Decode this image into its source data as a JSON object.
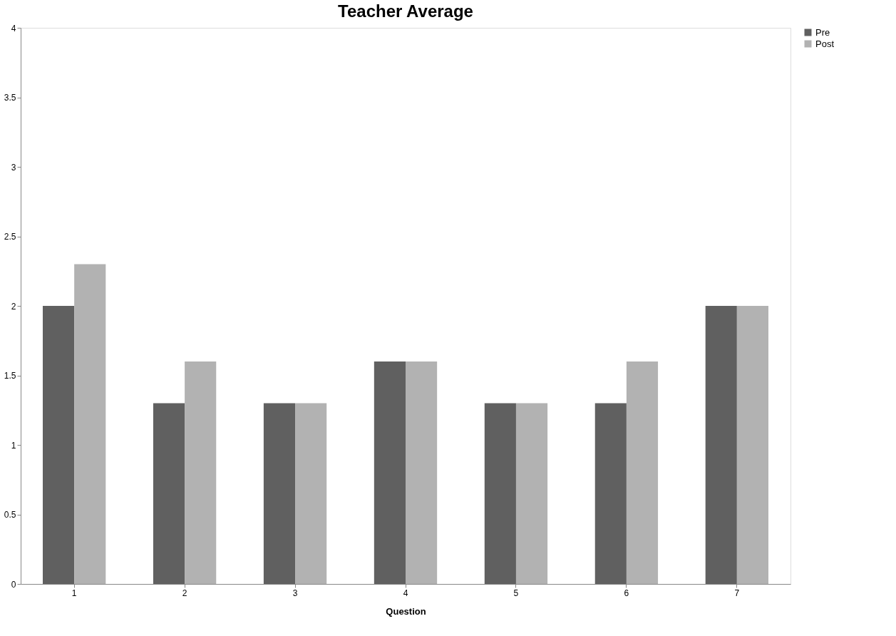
{
  "chart_data": {
    "type": "bar",
    "title": "Teacher Average",
    "xlabel": "Question",
    "categories": [
      "1",
      "2",
      "3",
      "4",
      "5",
      "6",
      "7"
    ],
    "series": [
      {
        "name": "Pre",
        "color": "#606060",
        "values": [
          2.0,
          1.3,
          1.3,
          1.6,
          1.3,
          1.3,
          2.0
        ]
      },
      {
        "name": "Post",
        "color": "#b2b2b2",
        "values": [
          2.3,
          1.6,
          1.3,
          1.6,
          1.3,
          1.6,
          2.0
        ]
      }
    ],
    "ylim": [
      0,
      4
    ],
    "yticks": [
      0,
      0.5,
      1,
      1.5,
      2,
      2.5,
      3,
      3.5,
      4
    ],
    "grid": false,
    "legend": "right"
  }
}
